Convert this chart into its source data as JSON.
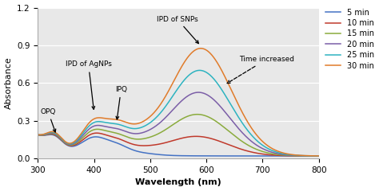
{
  "xlim": [
    300,
    800
  ],
  "ylim": [
    0,
    1.2
  ],
  "xlabel": "Wavelength (nm)",
  "ylabel": "Absorbance",
  "yticks": [
    0,
    0.3,
    0.6,
    0.9,
    1.2
  ],
  "xticks": [
    300,
    400,
    500,
    600,
    700,
    800
  ],
  "legend_labels": [
    "5 min",
    "10 min",
    "15 min",
    "20 min",
    "25 min",
    "30 min"
  ],
  "line_colors": [
    "#4472c4",
    "#c0392b",
    "#8aab3c",
    "#7b5ea7",
    "#2db3c0",
    "#e07b2a"
  ],
  "background_color": "#e8e8e8",
  "grid_color": "#ffffff",
  "figsize": [
    4.74,
    2.4
  ],
  "dpi": 100
}
